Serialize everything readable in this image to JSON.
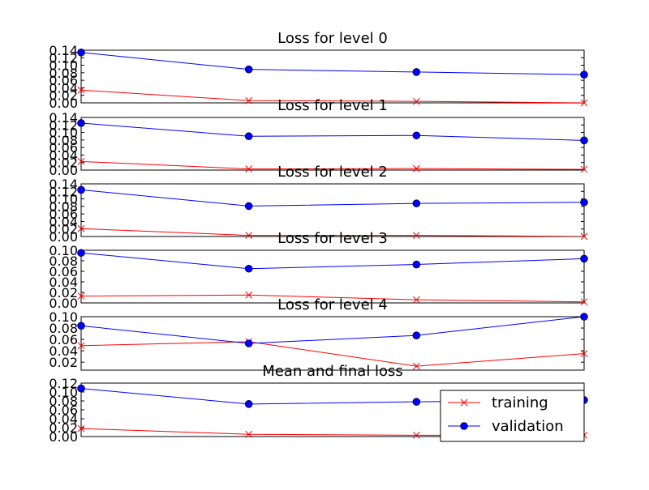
{
  "chart_data": [
    {
      "type": "line",
      "title": "Loss for level 0",
      "x": [
        0,
        1,
        2,
        3
      ],
      "ylim": [
        0,
        0.14
      ],
      "yticks": [
        "0.00",
        "0.02",
        "0.04",
        "0.06",
        "0.08",
        "0.10",
        "0.12",
        "0.14"
      ],
      "series": [
        {
          "name": "training",
          "color": "#ff0000",
          "marker": "x",
          "values": [
            0.034,
            0.006,
            0.004,
            0.0
          ]
        },
        {
          "name": "validation",
          "color": "#0000ff",
          "marker": "o",
          "values": [
            0.134,
            0.089,
            0.082,
            0.075
          ]
        }
      ]
    },
    {
      "type": "line",
      "title": "Loss for level 1",
      "x": [
        0,
        1,
        2,
        3
      ],
      "ylim": [
        0,
        0.14
      ],
      "yticks": [
        "0.00",
        "0.02",
        "0.04",
        "0.06",
        "0.08",
        "0.10",
        "0.12",
        "0.14"
      ],
      "series": [
        {
          "name": "training",
          "color": "#ff0000",
          "marker": "x",
          "values": [
            0.023,
            0.003,
            0.004,
            0.002
          ]
        },
        {
          "name": "validation",
          "color": "#0000ff",
          "marker": "o",
          "values": [
            0.125,
            0.09,
            0.092,
            0.079
          ]
        }
      ]
    },
    {
      "type": "line",
      "title": "Loss for level 2",
      "x": [
        0,
        1,
        2,
        3
      ],
      "ylim": [
        0,
        0.14
      ],
      "yticks": [
        "0.00",
        "0.02",
        "0.04",
        "0.06",
        "0.08",
        "0.10",
        "0.12",
        "0.14"
      ],
      "series": [
        {
          "name": "training",
          "color": "#ff0000",
          "marker": "x",
          "values": [
            0.021,
            0.003,
            0.003,
            0.0
          ]
        },
        {
          "name": "validation",
          "color": "#0000ff",
          "marker": "o",
          "values": [
            0.124,
            0.081,
            0.088,
            0.091
          ]
        }
      ]
    },
    {
      "type": "line",
      "title": "Loss for level 3",
      "x": [
        0,
        1,
        2,
        3
      ],
      "ylim": [
        0,
        0.1
      ],
      "yticks": [
        "0.00",
        "0.02",
        "0.04",
        "0.06",
        "0.08",
        "0.10"
      ],
      "series": [
        {
          "name": "training",
          "color": "#ff0000",
          "marker": "x",
          "values": [
            0.013,
            0.015,
            0.006,
            0.002
          ]
        },
        {
          "name": "validation",
          "color": "#0000ff",
          "marker": "o",
          "values": [
            0.095,
            0.065,
            0.073,
            0.084
          ]
        }
      ]
    },
    {
      "type": "line",
      "title": "Loss for level 4",
      "x": [
        0,
        1,
        2,
        3
      ],
      "ylim": [
        0.006,
        0.1
      ],
      "yticks": [
        "0.02",
        "0.04",
        "0.06",
        "0.08",
        "0.10"
      ],
      "ytick_values": [
        0.02,
        0.04,
        0.06,
        0.08,
        0.1
      ],
      "series": [
        {
          "name": "training",
          "color": "#ff0000",
          "marker": "x",
          "values": [
            0.049,
            0.056,
            0.013,
            0.035
          ]
        },
        {
          "name": "validation",
          "color": "#0000ff",
          "marker": "o",
          "values": [
            0.084,
            0.053,
            0.067,
            0.1
          ]
        }
      ]
    },
    {
      "type": "line",
      "title": "Mean and final loss",
      "x": [
        0,
        1,
        2,
        3
      ],
      "ylim": [
        0,
        0.12
      ],
      "yticks": [
        "0.00",
        "0.02",
        "0.04",
        "0.06",
        "0.08",
        "0.10",
        "0.12"
      ],
      "legend": {
        "placement": "lower-right",
        "entries": [
          "training",
          "validation"
        ]
      },
      "series": [
        {
          "name": "training",
          "color": "#ff0000",
          "marker": "x",
          "values": [
            0.018,
            0.005,
            0.003,
            0.003
          ]
        },
        {
          "name": "validation",
          "color": "#0000ff",
          "marker": "o",
          "values": [
            0.108,
            0.073,
            0.078,
            0.082
          ]
        }
      ]
    }
  ]
}
